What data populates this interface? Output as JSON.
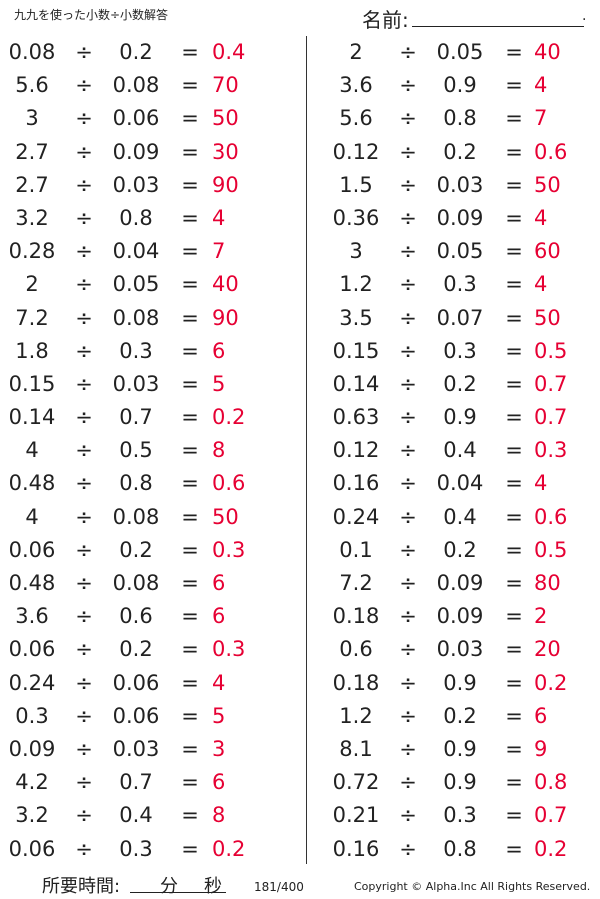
{
  "header": {
    "title": "九九を使った小数÷小数解答",
    "name_label": "名前:",
    "name_dot": "."
  },
  "left": [
    {
      "a": "0.08",
      "op": "÷",
      "b": "0.2",
      "eq": "=",
      "ans": "0.4"
    },
    {
      "a": "5.6",
      "op": "÷",
      "b": "0.08",
      "eq": "=",
      "ans": "70"
    },
    {
      "a": "3",
      "op": "÷",
      "b": "0.06",
      "eq": "=",
      "ans": "50"
    },
    {
      "a": "2.7",
      "op": "÷",
      "b": "0.09",
      "eq": "=",
      "ans": "30"
    },
    {
      "a": "2.7",
      "op": "÷",
      "b": "0.03",
      "eq": "=",
      "ans": "90"
    },
    {
      "a": "3.2",
      "op": "÷",
      "b": "0.8",
      "eq": "=",
      "ans": "4"
    },
    {
      "a": "0.28",
      "op": "÷",
      "b": "0.04",
      "eq": "=",
      "ans": "7"
    },
    {
      "a": "2",
      "op": "÷",
      "b": "0.05",
      "eq": "=",
      "ans": "40"
    },
    {
      "a": "7.2",
      "op": "÷",
      "b": "0.08",
      "eq": "=",
      "ans": "90"
    },
    {
      "a": "1.8",
      "op": "÷",
      "b": "0.3",
      "eq": "=",
      "ans": "6"
    },
    {
      "a": "0.15",
      "op": "÷",
      "b": "0.03",
      "eq": "=",
      "ans": "5"
    },
    {
      "a": "0.14",
      "op": "÷",
      "b": "0.7",
      "eq": "=",
      "ans": "0.2"
    },
    {
      "a": "4",
      "op": "÷",
      "b": "0.5",
      "eq": "=",
      "ans": "8"
    },
    {
      "a": "0.48",
      "op": "÷",
      "b": "0.8",
      "eq": "=",
      "ans": "0.6"
    },
    {
      "a": "4",
      "op": "÷",
      "b": "0.08",
      "eq": "=",
      "ans": "50"
    },
    {
      "a": "0.06",
      "op": "÷",
      "b": "0.2",
      "eq": "=",
      "ans": "0.3"
    },
    {
      "a": "0.48",
      "op": "÷",
      "b": "0.08",
      "eq": "=",
      "ans": "6"
    },
    {
      "a": "3.6",
      "op": "÷",
      "b": "0.6",
      "eq": "=",
      "ans": "6"
    },
    {
      "a": "0.06",
      "op": "÷",
      "b": "0.2",
      "eq": "=",
      "ans": "0.3"
    },
    {
      "a": "0.24",
      "op": "÷",
      "b": "0.06",
      "eq": "=",
      "ans": "4"
    },
    {
      "a": "0.3",
      "op": "÷",
      "b": "0.06",
      "eq": "=",
      "ans": "5"
    },
    {
      "a": "0.09",
      "op": "÷",
      "b": "0.03",
      "eq": "=",
      "ans": "3"
    },
    {
      "a": "4.2",
      "op": "÷",
      "b": "0.7",
      "eq": "=",
      "ans": "6"
    },
    {
      "a": "3.2",
      "op": "÷",
      "b": "0.4",
      "eq": "=",
      "ans": "8"
    },
    {
      "a": "0.06",
      "op": "÷",
      "b": "0.3",
      "eq": "=",
      "ans": "0.2"
    }
  ],
  "right": [
    {
      "a": "2",
      "op": "÷",
      "b": "0.05",
      "eq": "=",
      "ans": "40"
    },
    {
      "a": "3.6",
      "op": "÷",
      "b": "0.9",
      "eq": "=",
      "ans": "4"
    },
    {
      "a": "5.6",
      "op": "÷",
      "b": "0.8",
      "eq": "=",
      "ans": "7"
    },
    {
      "a": "0.12",
      "op": "÷",
      "b": "0.2",
      "eq": "=",
      "ans": "0.6"
    },
    {
      "a": "1.5",
      "op": "÷",
      "b": "0.03",
      "eq": "=",
      "ans": "50"
    },
    {
      "a": "0.36",
      "op": "÷",
      "b": "0.09",
      "eq": "=",
      "ans": "4"
    },
    {
      "a": "3",
      "op": "÷",
      "b": "0.05",
      "eq": "=",
      "ans": "60"
    },
    {
      "a": "1.2",
      "op": "÷",
      "b": "0.3",
      "eq": "=",
      "ans": "4"
    },
    {
      "a": "3.5",
      "op": "÷",
      "b": "0.07",
      "eq": "=",
      "ans": "50"
    },
    {
      "a": "0.15",
      "op": "÷",
      "b": "0.3",
      "eq": "=",
      "ans": "0.5"
    },
    {
      "a": "0.14",
      "op": "÷",
      "b": "0.2",
      "eq": "=",
      "ans": "0.7"
    },
    {
      "a": "0.63",
      "op": "÷",
      "b": "0.9",
      "eq": "=",
      "ans": "0.7"
    },
    {
      "a": "0.12",
      "op": "÷",
      "b": "0.4",
      "eq": "=",
      "ans": "0.3"
    },
    {
      "a": "0.16",
      "op": "÷",
      "b": "0.04",
      "eq": "=",
      "ans": "4"
    },
    {
      "a": "0.24",
      "op": "÷",
      "b": "0.4",
      "eq": "=",
      "ans": "0.6"
    },
    {
      "a": "0.1",
      "op": "÷",
      "b": "0.2",
      "eq": "=",
      "ans": "0.5"
    },
    {
      "a": "7.2",
      "op": "÷",
      "b": "0.09",
      "eq": "=",
      "ans": "80"
    },
    {
      "a": "0.18",
      "op": "÷",
      "b": "0.09",
      "eq": "=",
      "ans": "2"
    },
    {
      "a": "0.6",
      "op": "÷",
      "b": "0.03",
      "eq": "=",
      "ans": "20"
    },
    {
      "a": "0.18",
      "op": "÷",
      "b": "0.9",
      "eq": "=",
      "ans": "0.2"
    },
    {
      "a": "1.2",
      "op": "÷",
      "b": "0.2",
      "eq": "=",
      "ans": "6"
    },
    {
      "a": "8.1",
      "op": "÷",
      "b": "0.9",
      "eq": "=",
      "ans": "9"
    },
    {
      "a": "0.72",
      "op": "÷",
      "b": "0.9",
      "eq": "=",
      "ans": "0.8"
    },
    {
      "a": "0.21",
      "op": "÷",
      "b": "0.3",
      "eq": "=",
      "ans": "0.7"
    },
    {
      "a": "0.16",
      "op": "÷",
      "b": "0.8",
      "eq": "=",
      "ans": "0.2"
    }
  ],
  "footer": {
    "time_label": "所要時間:",
    "minutes_label": "分",
    "seconds_label": "秒",
    "page": "181/400",
    "copyright": "Copyright © Alpha.Inc All Rights Reserved."
  },
  "colors": {
    "answer": "#e60033",
    "text": "#222222"
  }
}
